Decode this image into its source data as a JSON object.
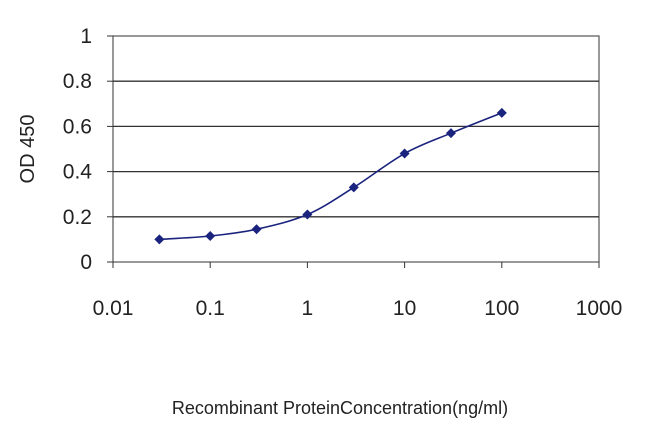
{
  "chart_data": {
    "type": "line",
    "title": "",
    "xlabel": "Recombinant ProteinConcentration(ng/ml)",
    "ylabel": "OD 450",
    "x_scale": "log",
    "xlim": [
      0.01,
      1000
    ],
    "ylim": [
      0,
      1
    ],
    "x_ticks": [
      0.01,
      0.1,
      1,
      10,
      100,
      1000
    ],
    "x_tick_labels": [
      "0.01",
      "0.1",
      "1",
      "10",
      "100",
      "1000"
    ],
    "y_ticks": [
      0,
      0.2,
      0.4,
      0.6,
      0.8,
      1
    ],
    "y_tick_labels": [
      "0",
      "0.2",
      "0.4",
      "0.6",
      "0.8",
      "1"
    ],
    "grid": "horizontal",
    "legend": "none",
    "series": [
      {
        "x": [
          0.03,
          0.1,
          0.3,
          1,
          3,
          10,
          30,
          100
        ],
        "y": [
          0.1,
          0.115,
          0.145,
          0.21,
          0.33,
          0.48,
          0.57,
          0.66
        ],
        "color": "#1a237e",
        "marker": "diamond"
      }
    ]
  }
}
